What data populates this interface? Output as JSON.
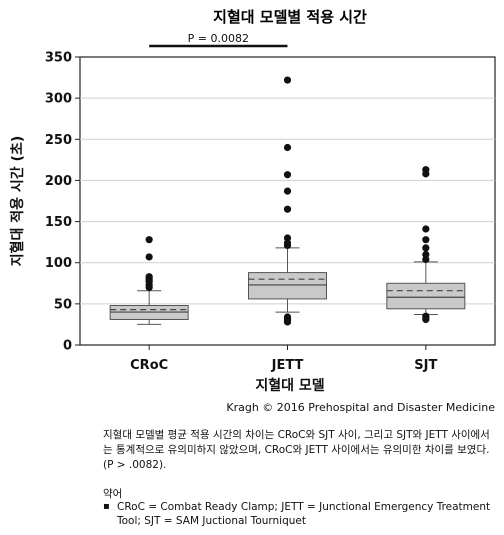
{
  "chart_data": {
    "type": "box",
    "title": "지혈대 모델별 적용 시간",
    "xlabel": "지혈대 모델",
    "ylabel": "지혈대 적용 시간 (초)",
    "ylim": [
      0,
      350
    ],
    "yticks": [
      0,
      50,
      100,
      150,
      200,
      250,
      300,
      350
    ],
    "grid": true,
    "categories": [
      "CRoC",
      "JETT",
      "SJT"
    ],
    "boxes": [
      {
        "name": "CRoC",
        "q1": 31,
        "median": 40,
        "q3": 48,
        "mean": 43,
        "whisker_low": 25,
        "whisker_high": 66,
        "outliers": [
          70,
          73,
          77,
          79,
          81,
          83,
          107,
          128
        ]
      },
      {
        "name": "JETT",
        "q1": 56,
        "median": 73,
        "q3": 88,
        "mean": 80,
        "whisker_low": 40,
        "whisker_high": 118,
        "outliers": [
          28,
          30,
          32,
          34,
          121,
          124,
          130,
          165,
          187,
          207,
          240,
          322
        ]
      },
      {
        "name": "SJT",
        "q1": 44,
        "median": 58,
        "q3": 75,
        "mean": 66,
        "whisker_low": 37,
        "whisker_high": 101,
        "outliers": [
          31,
          33,
          35,
          104,
          110,
          118,
          128,
          141,
          208,
          213
        ]
      }
    ],
    "annotation": {
      "text": "P = 0.0082",
      "from": "CRoC",
      "to": "JETT"
    }
  },
  "credit": "Kragh © 2016 Prehospital and Disaster Medicine",
  "caption": "지혈대 모델별 평균 적용 시간의 차이는 CRoC와 SJT 사이, 그리고 SJT와 JETT 사이에서는 통계적으로 유의미하지 않았으며, CRoC와 JETT 사이에서는 유의미한 차이를 보였다. (P > .0082).",
  "abbreviations_title": "약어",
  "abbreviations": [
    "CRoC = Combat Ready Clamp; JETT = Junctional Emergency Treatment Tool; SJT = SAM Juctional Tourniquet"
  ]
}
